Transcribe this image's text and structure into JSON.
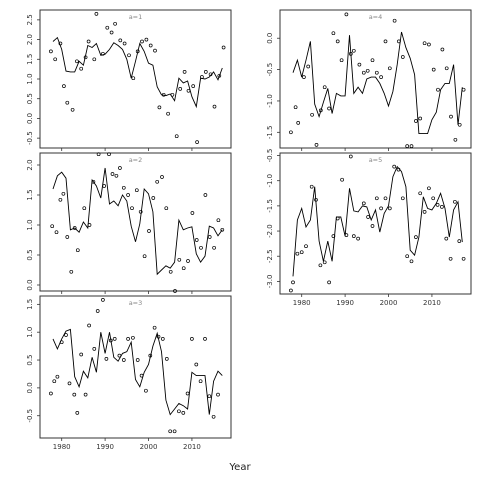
{
  "figure": {
    "xlabel": "Year"
  },
  "chart_data": [
    {
      "type": "line",
      "title": "a=1",
      "xlim": [
        1975,
        2019
      ],
      "ylim": [
        -0.75,
        2.75
      ],
      "x_ticks": [
        1980,
        1990,
        2000,
        2010
      ],
      "y_ticks": [
        -0.5,
        0,
        0.5,
        1,
        1.5,
        2,
        2.5
      ],
      "y_tick_labels": [
        "-0.5",
        "0.0",
        "0.5",
        "1.0",
        "1.5",
        "2.0",
        "2.5"
      ],
      "x_tick_labels_shown": false,
      "line": {
        "x": [
          1978,
          1979,
          1980,
          1981,
          1982,
          1983,
          1984,
          1985,
          1986,
          1987,
          1988,
          1989,
          1990,
          1991,
          1992,
          1993,
          1994,
          1995,
          1996,
          1997,
          1998,
          1999,
          2000,
          2001,
          2002,
          2003,
          2004,
          2005,
          2006,
          2007,
          2008,
          2009,
          2010,
          2011,
          2012,
          2013,
          2014,
          2015,
          2016,
          2017
        ],
        "y": [
          1.95,
          2.05,
          1.75,
          1.2,
          1.18,
          1.18,
          1.45,
          1.35,
          1.85,
          1.8,
          1.9,
          1.6,
          1.63,
          1.75,
          1.92,
          1.85,
          1.75,
          1.5,
          1.02,
          1.45,
          1.9,
          1.7,
          1.4,
          1.35,
          0.8,
          0.6,
          0.58,
          0.62,
          0.45,
          1.02,
          0.9,
          0.95,
          0.55,
          0.3,
          1.02,
          1.0,
          1.05,
          1.18,
          0.98,
          1.28
        ]
      },
      "points": {
        "x": [
          1977.5,
          1978.5,
          1979.7,
          1980.5,
          1981.3,
          1982.5,
          1983.5,
          1984.5,
          1985.5,
          1986.2,
          1987.5,
          1988,
          1989.5,
          1990.5,
          1991.5,
          1992.3,
          1993.5,
          1994.5,
          1995.5,
          1996.5,
          1997.5,
          1998.5,
          1999.5,
          2000.5,
          2001.5,
          2002.5,
          2003.5,
          2004.5,
          2005.5,
          2006.5,
          2007.3,
          2008.3,
          2009.2,
          2010.3,
          2011.2,
          2012.3,
          2013.2,
          2014.3,
          2015.2,
          2016.3,
          2017.3
        ],
        "y": [
          1.7,
          1.5,
          1.9,
          0.82,
          0.4,
          0.22,
          1.45,
          1.26,
          1.55,
          1.95,
          1.5,
          2.65,
          1.64,
          2.3,
          2.18,
          2.4,
          1.98,
          1.9,
          1.6,
          1.02,
          1.7,
          1.95,
          2.0,
          1.85,
          1.72,
          0.28,
          0.6,
          0.12,
          0.6,
          -0.45,
          0.75,
          1.18,
          0.7,
          0.82,
          -0.6,
          1.05,
          1.18,
          1.12,
          0.3,
          1.08,
          1.8
        ]
      }
    },
    {
      "type": "line",
      "title": "a=2",
      "xlim": [
        1975,
        2019
      ],
      "ylim": [
        -0.1,
        2.2
      ],
      "x_ticks": [
        1980,
        1990,
        2000,
        2010
      ],
      "y_ticks": [
        0,
        0.5,
        1,
        1.5,
        2
      ],
      "y_tick_labels": [
        "0.0",
        "0.5",
        "1.0",
        "1.5",
        "2.0"
      ],
      "x_tick_labels_shown": false,
      "line": {
        "x": [
          1978,
          1979,
          1980,
          1981,
          1982,
          1983,
          1984,
          1985,
          1986,
          1987,
          1988,
          1989,
          1990,
          1991,
          1992,
          1993,
          1994,
          1995,
          1996,
          1997,
          1998,
          1999,
          2000,
          2001,
          2002,
          2003,
          2004,
          2005,
          2006,
          2007,
          2008,
          2009,
          2010,
          2011,
          2012,
          2013,
          2014,
          2015,
          2016,
          2017
        ],
        "y": [
          1.6,
          1.82,
          1.88,
          1.78,
          0.92,
          0.95,
          0.88,
          1.05,
          0.95,
          1.75,
          1.65,
          1.45,
          1.95,
          1.35,
          1.4,
          1.32,
          1.5,
          1.4,
          0.98,
          0.72,
          1.02,
          1.6,
          1.52,
          1.22,
          0.18,
          0.25,
          0.32,
          0.28,
          0.38,
          1.08,
          0.92,
          0.95,
          0.97,
          0.52,
          0.38,
          0.48,
          0.98,
          0.95,
          0.82,
          0.92
        ]
      },
      "points": {
        "x": [
          1977.8,
          1978.8,
          1979.7,
          1980.4,
          1981.3,
          1982.2,
          1983.0,
          1983.7,
          1985.2,
          1986.4,
          1987.3,
          1988.5,
          1989.8,
          1990.9,
          1991.7,
          1992.6,
          1993.4,
          1994.3,
          1995.3,
          1996.2,
          1997.3,
          1998.2,
          1999.1,
          2000.1,
          2001.1,
          2002.0,
          2003.1,
          2004.1,
          2005.1,
          2006.1,
          2007.1,
          2008.1,
          2009.1,
          2010.1,
          2011.1,
          2012.1,
          2013.1,
          2014.1,
          2015.1,
          2016.1,
          2017.0
        ],
        "y": [
          0.98,
          0.88,
          1.42,
          1.52,
          0.8,
          0.22,
          0.95,
          0.58,
          1.28,
          1.0,
          1.72,
          2.18,
          1.65,
          2.18,
          1.85,
          1.82,
          1.95,
          1.62,
          1.5,
          1.28,
          1.58,
          1.22,
          0.48,
          0.9,
          1.45,
          1.72,
          1.8,
          1.28,
          0.22,
          -0.1,
          0.42,
          0.28,
          0.4,
          1.2,
          0.75,
          0.62,
          1.5,
          0.8,
          0.62,
          1.08,
          0.92
        ]
      }
    },
    {
      "type": "line",
      "title": "a=3",
      "xlim": [
        1975,
        2019
      ],
      "ylim": [
        -0.9,
        1.65
      ],
      "x_ticks": [
        1980,
        1990,
        2000,
        2010
      ],
      "x_tick_labels": [
        "1980",
        "1990",
        "2000",
        "2010"
      ],
      "y_ticks": [
        -0.5,
        0,
        0.5,
        1,
        1.5
      ],
      "y_tick_labels": [
        "-0.5",
        "0.0",
        "0.5",
        "1.0",
        "1.5"
      ],
      "x_tick_labels_shown": true,
      "line": {
        "x": [
          1978,
          1979,
          1980,
          1981,
          1982,
          1983,
          1984,
          1985,
          1986,
          1987,
          1988,
          1989,
          1990,
          1991,
          1992,
          1993,
          1994,
          1995,
          1996,
          1997,
          1998,
          1999,
          2000,
          2001,
          2002,
          2003,
          2004,
          2005,
          2006,
          2007,
          2008,
          2009,
          2010,
          2011,
          2012,
          2013,
          2014,
          2015,
          2016,
          2017
        ],
        "y": [
          0.88,
          0.7,
          0.88,
          1.02,
          1.05,
          0.2,
          0.02,
          0.3,
          0.18,
          0.55,
          0.28,
          1.0,
          0.62,
          1.0,
          0.55,
          0.48,
          0.62,
          0.65,
          0.82,
          0.15,
          0.02,
          0.28,
          0.42,
          0.75,
          0.98,
          0.65,
          -0.22,
          -0.48,
          -0.38,
          -0.28,
          -0.32,
          -0.38,
          0.28,
          0.22,
          0.22,
          0.22,
          -0.48,
          0.12,
          0.3,
          0.22
        ]
      },
      "points": {
        "x": [
          1977.5,
          1978.3,
          1979.0,
          1980.0,
          1981.0,
          1981.8,
          1982.9,
          1983.6,
          1984.5,
          1985.5,
          1986.3,
          1987.5,
          1988.3,
          1989.5,
          1990.3,
          1991.3,
          1992.2,
          1993.3,
          1994.3,
          1995.3,
          1996.4,
          1997.5,
          1998.4,
          1999.4,
          2000.4,
          2001.4,
          2002.3,
          2003.3,
          2004.2,
          2005.0,
          2006.0,
          2007.0,
          2008.0,
          2009.0,
          2010.0,
          2011.0,
          2012.0,
          2013.0,
          2014.0,
          2015.0,
          2016.0
        ],
        "y": [
          -0.1,
          0.12,
          0.2,
          0.82,
          0.95,
          0.08,
          -0.12,
          -0.45,
          0.6,
          -0.12,
          1.12,
          0.7,
          1.38,
          1.58,
          0.52,
          0.85,
          0.88,
          0.58,
          0.5,
          0.88,
          0.9,
          0.5,
          0.22,
          -0.05,
          0.58,
          1.08,
          0.92,
          0.88,
          0.52,
          -0.78,
          -0.78,
          -0.42,
          -0.45,
          -0.1,
          0.88,
          0.42,
          0.12,
          0.88,
          -0.15,
          -0.52,
          -0.12
        ]
      }
    },
    {
      "type": "line",
      "title": "a=4",
      "xlim": [
        1975,
        2019
      ],
      "ylim": [
        -1.75,
        0.45
      ],
      "x_ticks": [
        1980,
        1990,
        2000,
        2010
      ],
      "y_ticks": [
        -1.5,
        -1,
        -0.5,
        0
      ],
      "y_tick_labels": [
        "-1.5",
        "-1.0",
        "-0.5",
        "0.0"
      ],
      "x_tick_labels_shown": false,
      "line": {
        "x": [
          1978,
          1979,
          1980,
          1981,
          1982,
          1983,
          1984,
          1985,
          1986,
          1987,
          1988,
          1989,
          1990,
          1991,
          1992,
          1993,
          1994,
          1995,
          1996,
          1997,
          1998,
          1999,
          2000,
          2001,
          2002,
          2003,
          2004,
          2005,
          2006,
          2007,
          2008,
          2009,
          2010,
          2011,
          2012,
          2013,
          2014,
          2015,
          2016,
          2017
        ],
        "y": [
          -0.55,
          -0.35,
          -0.62,
          -0.35,
          -0.05,
          -1.05,
          -1.25,
          -1.02,
          -0.8,
          -1.2,
          -0.88,
          -0.92,
          -0.92,
          0.05,
          -0.88,
          -0.78,
          -0.88,
          -0.65,
          -0.62,
          -0.62,
          -0.72,
          -0.88,
          -1.08,
          -0.85,
          -0.42,
          0.1,
          -0.15,
          -0.32,
          -0.58,
          -1.52,
          -1.52,
          -1.52,
          -1.3,
          -1.18,
          -0.82,
          -0.72,
          -0.72,
          -0.42,
          -1.38,
          -0.78
        ]
      },
      "points": {
        "x": [
          1977.5,
          1978.6,
          1979.2,
          1980.5,
          1981.5,
          1982.4,
          1983.4,
          1984.4,
          1985.3,
          1986.3,
          1987.3,
          1988.3,
          1989.2,
          1990.3,
          1991.3,
          1992.0,
          1993.3,
          1994.3,
          1995.2,
          1996.3,
          1997.3,
          1998.3,
          1999.3,
          2000.3,
          2001.4,
          2002.4,
          2003.3,
          2004.3,
          2005.3,
          2006.3,
          2007.3,
          2008.3,
          2009.3,
          2010.4,
          2011.4,
          2012.4,
          2013.4,
          2014.4,
          2015.4,
          2016.4,
          2017.3
        ],
        "y": [
          -1.5,
          -1.1,
          -1.35,
          -0.62,
          -0.45,
          -1.22,
          -1.7,
          -1.15,
          -0.78,
          -1.12,
          0.08,
          -0.05,
          -0.35,
          0.38,
          -0.25,
          -0.2,
          -0.42,
          -0.55,
          -0.52,
          -0.35,
          -0.55,
          -0.62,
          -0.05,
          -0.48,
          0.28,
          -0.05,
          -0.3,
          -1.72,
          -1.72,
          -1.32,
          -1.28,
          -0.08,
          -0.1,
          -0.5,
          -0.82,
          -0.18,
          -0.48,
          -1.25,
          -1.62,
          -1.38,
          -0.82
        ]
      }
    },
    {
      "type": "line",
      "title": "a=5",
      "xlim": [
        1975,
        2019
      ],
      "ylim": [
        -3.25,
        -0.45
      ],
      "x_ticks": [
        1980,
        1990,
        2000,
        2010
      ],
      "x_tick_labels": [
        "1980",
        "1990",
        "2000",
        "2010"
      ],
      "y_ticks": [
        -3,
        -2.5,
        -2,
        -1.5,
        -1,
        -0.5
      ],
      "y_tick_labels": [
        "-3.0",
        "-2.5",
        "-2.0",
        "-1.5",
        "-1.0",
        "-0.5"
      ],
      "x_tick_labels_shown": true,
      "line": {
        "x": [
          1978,
          1979,
          1980,
          1981,
          1982,
          1983,
          1984,
          1985,
          1986,
          1987,
          1988,
          1989,
          1990,
          1991,
          1992,
          1993,
          1994,
          1995,
          1996,
          1997,
          1998,
          1999,
          2000,
          2001,
          2002,
          2003,
          2004,
          2005,
          2006,
          2007,
          2008,
          2009,
          2010,
          2011,
          2012,
          2013,
          2014,
          2015,
          2016,
          2017
        ],
        "y": [
          -2.9,
          -1.78,
          -1.55,
          -1.92,
          -1.78,
          -1.12,
          -2.2,
          -2.6,
          -2.2,
          -2.6,
          -1.72,
          -1.72,
          -2.1,
          -1.15,
          -1.6,
          -1.62,
          -1.5,
          -1.52,
          -1.78,
          -1.58,
          -2.02,
          -1.65,
          -1.5,
          -0.92,
          -0.72,
          -0.82,
          -1.12,
          -2.38,
          -2.48,
          -2.12,
          -1.32,
          -1.55,
          -1.58,
          -1.45,
          -1.25,
          -1.55,
          -2.12,
          -1.58,
          -1.42,
          -2.22
        ]
      },
      "points": {
        "x": [
          1977.5,
          1978.0,
          1979.0,
          1980.0,
          1981.0,
          1982.3,
          1983.3,
          1984.3,
          1985.3,
          1986.3,
          1987.3,
          1988.3,
          1989.3,
          1990.3,
          1991.3,
          1992.0,
          1993.0,
          1994.3,
          1995.3,
          1996.3,
          1997.3,
          1998.3,
          1999.3,
          2000.3,
          2001.3,
          2002.3,
          2003.3,
          2004.3,
          2005.3,
          2006.3,
          2007.3,
          2008.3,
          2009.3,
          2010.3,
          2011.3,
          2012.3,
          2013.3,
          2014.3,
          2015.3,
          2016.3,
          2017.3
        ],
        "y": [
          -3.18,
          -3.02,
          -2.45,
          -2.42,
          -2.3,
          -1.12,
          -1.38,
          -2.68,
          -2.62,
          -3.02,
          -2.1,
          -1.75,
          -0.98,
          -2.08,
          -0.52,
          -2.1,
          -2.15,
          -1.45,
          -1.72,
          -1.9,
          -1.35,
          -1.55,
          -1.35,
          -1.55,
          -0.72,
          -0.78,
          -1.35,
          -2.5,
          -2.6,
          -2.12,
          -1.25,
          -1.62,
          -1.15,
          -1.35,
          -1.48,
          -1.52,
          -2.15,
          -2.55,
          -1.42,
          -2.2,
          -2.55
        ]
      }
    }
  ]
}
